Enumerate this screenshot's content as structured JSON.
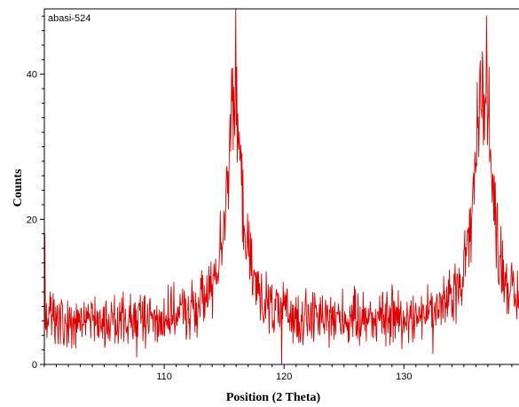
{
  "chart_data": {
    "type": "line",
    "title": "",
    "sample_label": "abasi-524",
    "xlabel": "Position (2 Theta)",
    "ylabel": "Counts",
    "xlim": [
      100.0,
      139.6
    ],
    "ylim": [
      0,
      49
    ],
    "x_ticks": [
      110,
      120,
      130
    ],
    "y_ticks": [
      0,
      20,
      40
    ],
    "grid": false,
    "legend": "none",
    "colors": {
      "series": "#dd0000",
      "axis": "#000000"
    },
    "series": [
      {
        "profile": {
          "background": 6,
          "noise_amplitude": 2.8,
          "peaks": [
            {
              "center": 115.8,
              "height": 30,
              "width": 0.8
            },
            {
              "center": 136.6,
              "height": 32,
              "width": 0.9
            }
          ],
          "spikes": [
            {
              "x": 115.95,
              "y": 49
            },
            {
              "x": 116.05,
              "y": 41
            },
            {
              "x": 136.9,
              "y": 48
            },
            {
              "x": 137.1,
              "y": 41
            },
            {
              "x": 100.05,
              "y": 18
            },
            {
              "x": 119.8,
              "y": 0
            },
            {
              "x": 107.7,
              "y": 1
            },
            {
              "x": 106.6,
              "y": 10
            },
            {
              "x": 129.0,
              "y": 11
            },
            {
              "x": 132.4,
              "y": 1.5
            }
          ]
        }
      }
    ]
  }
}
